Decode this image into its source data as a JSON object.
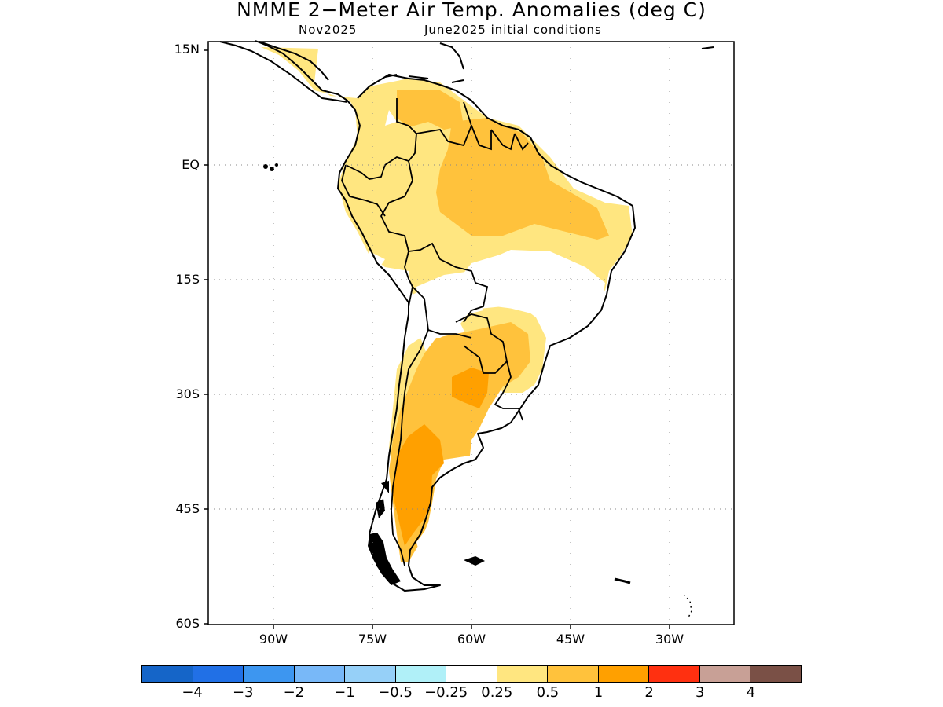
{
  "title": "NMME 2−Meter Air Temp. Anomalies (deg C)",
  "subtitle_left": "Nov2025",
  "subtitle_right": "June2025 initial conditions",
  "axes": {
    "y_ticks": [
      "15N",
      "EQ",
      "15S",
      "30S",
      "45S",
      "60S"
    ],
    "x_ticks": [
      "90W",
      "75W",
      "60W",
      "45W",
      "30W"
    ]
  },
  "colorbar": {
    "colors": [
      "#1565c8",
      "#2170e6",
      "#3d96f0",
      "#78b8f8",
      "#96d0f8",
      "#b0f0f8",
      "#ffffff",
      "#ffe680",
      "#ffc23c",
      "#ffa000",
      "#ff3010",
      "#c8a096",
      "#7a5046"
    ],
    "labels": [
      "−4",
      "−3",
      "−2",
      "−1",
      "−0.5",
      "−0.25",
      "0.25",
      "0.5",
      "1",
      "2",
      "3",
      "4"
    ]
  },
  "map": {
    "region": "South America",
    "anomaly_fill_colors": {
      "light": "#ffe680",
      "medium": "#ffc23c",
      "strong": "#ffa000"
    }
  }
}
